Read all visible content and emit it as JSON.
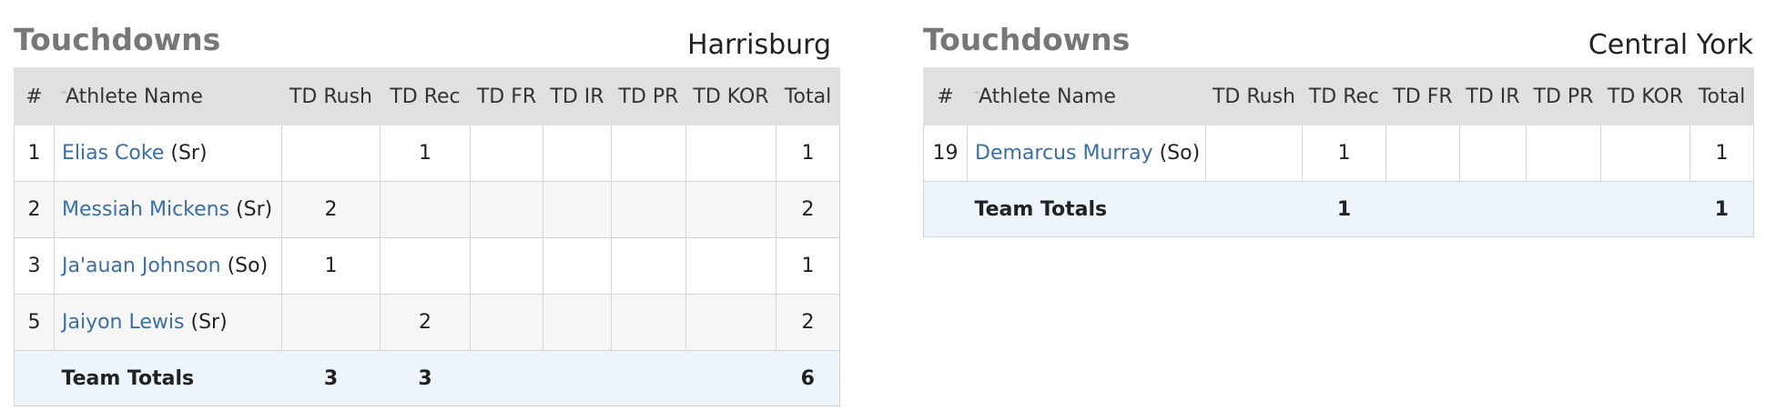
{
  "left": {
    "title": "Touchdowns",
    "team": "Harrisburg",
    "headers": {
      "num": "#",
      "name": "Athlete Name",
      "td_rush": "TD Rush",
      "td_rec": "TD Rec",
      "td_fr": "TD FR",
      "td_ir": "TD IR",
      "td_pr": "TD PR",
      "td_kor": "TD KOR",
      "total": "Total"
    },
    "rows": [
      {
        "num": "1",
        "name": "Elias Coke",
        "year": "(Sr)",
        "td_rush": "",
        "td_rec": "1",
        "td_fr": "",
        "td_ir": "",
        "td_pr": "",
        "td_kor": "",
        "total": "1"
      },
      {
        "num": "2",
        "name": "Messiah Mickens",
        "year": "(Sr)",
        "td_rush": "2",
        "td_rec": "",
        "td_fr": "",
        "td_ir": "",
        "td_pr": "",
        "td_kor": "",
        "total": "2"
      },
      {
        "num": "3",
        "name": "Ja'auan Johnson",
        "year": "(So)",
        "td_rush": "1",
        "td_rec": "",
        "td_fr": "",
        "td_ir": "",
        "td_pr": "",
        "td_kor": "",
        "total": "1"
      },
      {
        "num": "5",
        "name": "Jaiyon Lewis",
        "year": "(Sr)",
        "td_rush": "",
        "td_rec": "2",
        "td_fr": "",
        "td_ir": "",
        "td_pr": "",
        "td_kor": "",
        "total": "2"
      }
    ],
    "totals": {
      "label": "Team Totals",
      "td_rush": "3",
      "td_rec": "3",
      "total": "6"
    }
  },
  "right": {
    "title": "Touchdowns",
    "team": "Central York",
    "headers": {
      "num": "#",
      "name": "Athlete Name",
      "td_rush": "TD Rush",
      "td_rec": "TD Rec",
      "td_fr": "TD FR",
      "td_ir": "TD IR",
      "td_pr": "TD PR",
      "td_kor": "TD KOR",
      "total": "Total"
    },
    "rows": [
      {
        "num": "19",
        "name": "Demarcus Murray",
        "year": "(So)",
        "td_rush": "",
        "td_rec": "1",
        "td_fr": "",
        "td_ir": "",
        "td_pr": "",
        "td_kor": "",
        "total": "1"
      }
    ],
    "totals": {
      "label": "Team Totals",
      "td_rush": "",
      "td_rec": "1",
      "total": "1"
    }
  }
}
